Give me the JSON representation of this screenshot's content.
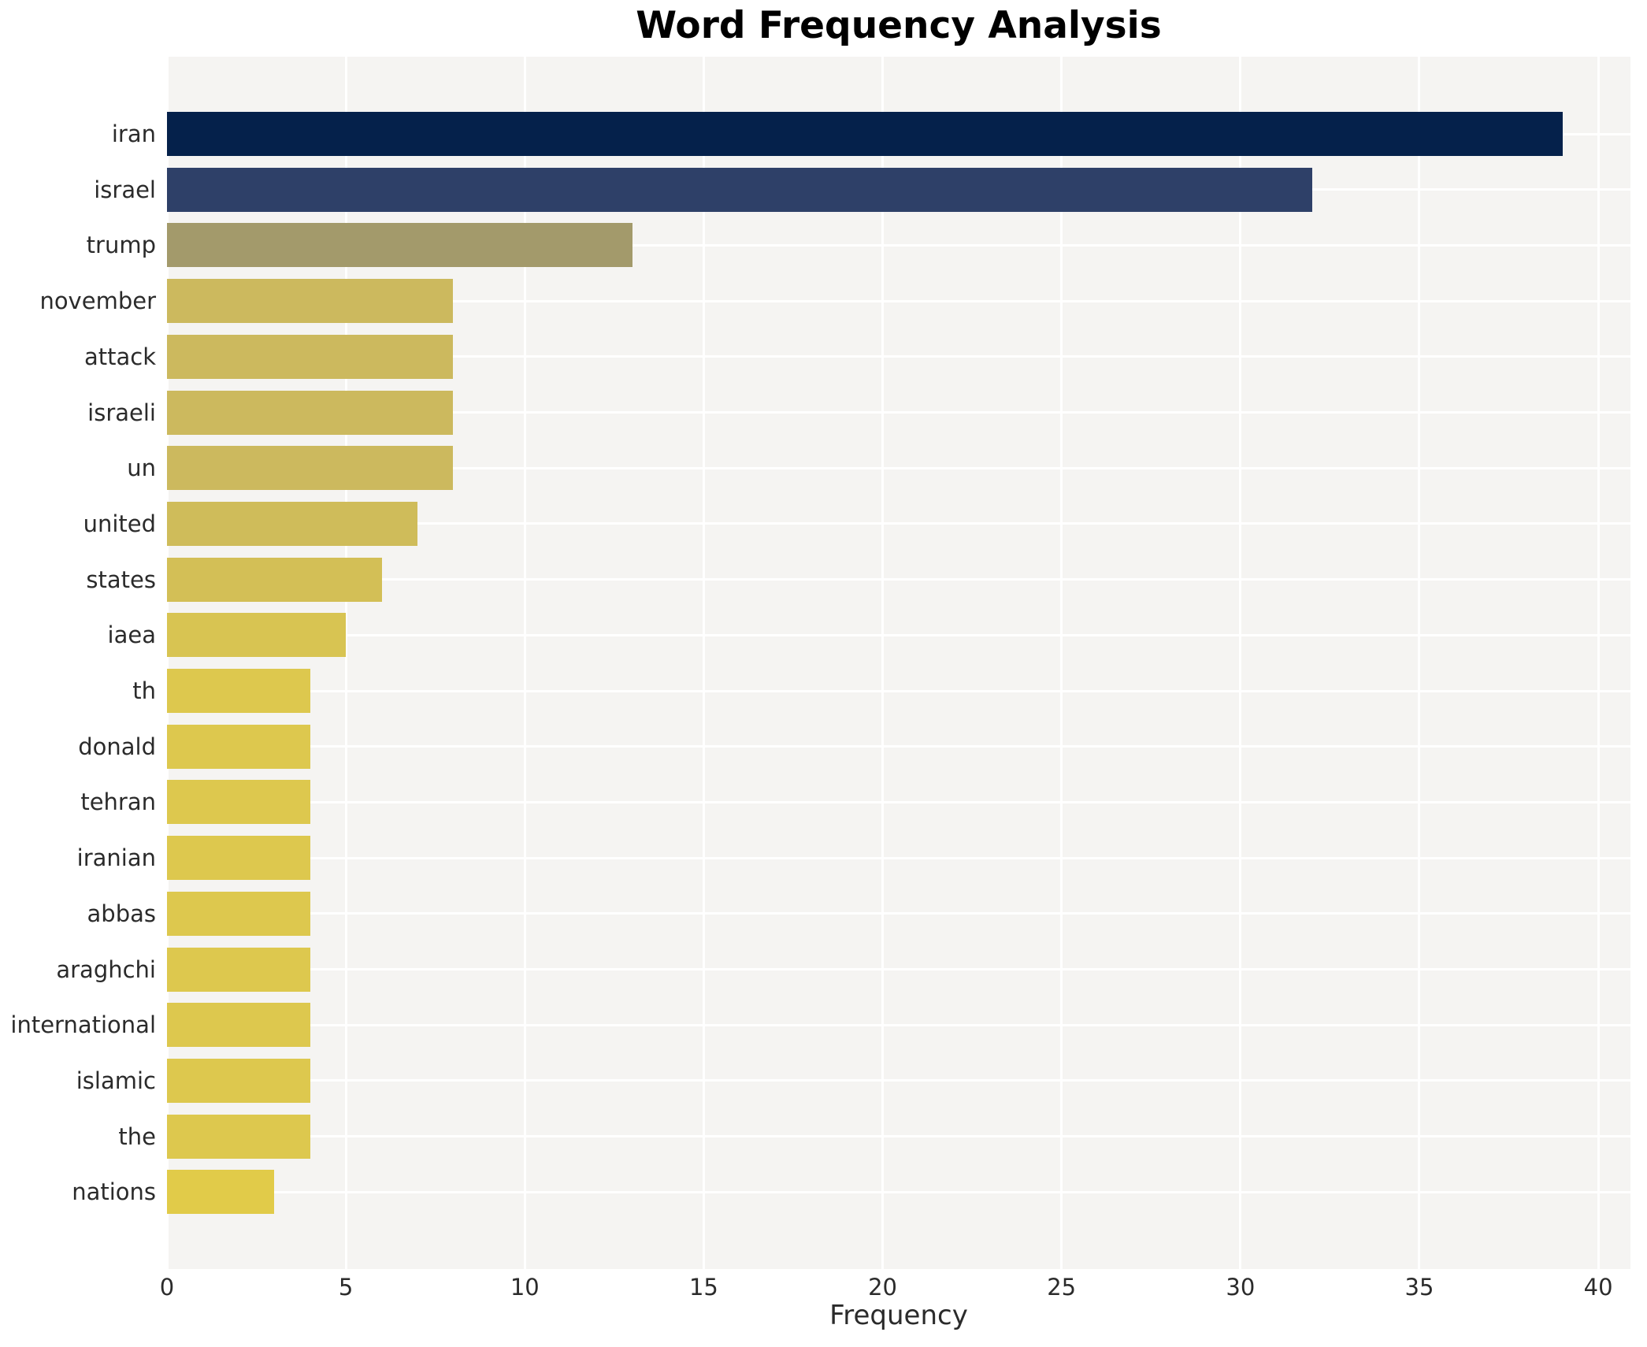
{
  "chart_data": {
    "type": "bar",
    "orientation": "horizontal",
    "title": "Word Frequency Analysis",
    "xlabel": "Frequency",
    "ylabel": "",
    "categories": [
      "iran",
      "israel",
      "trump",
      "november",
      "attack",
      "israeli",
      "un",
      "united",
      "states",
      "iaea",
      "th",
      "donald",
      "tehran",
      "iranian",
      "abbas",
      "araghchi",
      "international",
      "islamic",
      "the",
      "nations"
    ],
    "values": [
      39,
      32,
      13,
      8,
      8,
      8,
      8,
      7,
      6,
      5,
      4,
      4,
      4,
      4,
      4,
      4,
      4,
      4,
      4,
      3
    ],
    "colors": [
      "#05214b",
      "#2e4068",
      "#a39a6b",
      "#ccb95e",
      "#ccb95e",
      "#ccb95e",
      "#ccb95e",
      "#cfbc5a",
      "#d3bf56",
      "#d8c452",
      "#ddc84e",
      "#ddc84e",
      "#ddc84e",
      "#ddc84e",
      "#ddc84e",
      "#ddc84e",
      "#ddc84e",
      "#ddc84e",
      "#ddc84e",
      "#e1cb49"
    ],
    "xticks": [
      0,
      5,
      10,
      15,
      20,
      25,
      30,
      35,
      40
    ],
    "xlim": [
      0,
      40.9
    ],
    "grid": true,
    "legend": false,
    "plot_bg_color": "#f5f4f2",
    "grid_color": "#ffffff",
    "title_color": "#000000",
    "tick_color": "#2b2b2b"
  }
}
